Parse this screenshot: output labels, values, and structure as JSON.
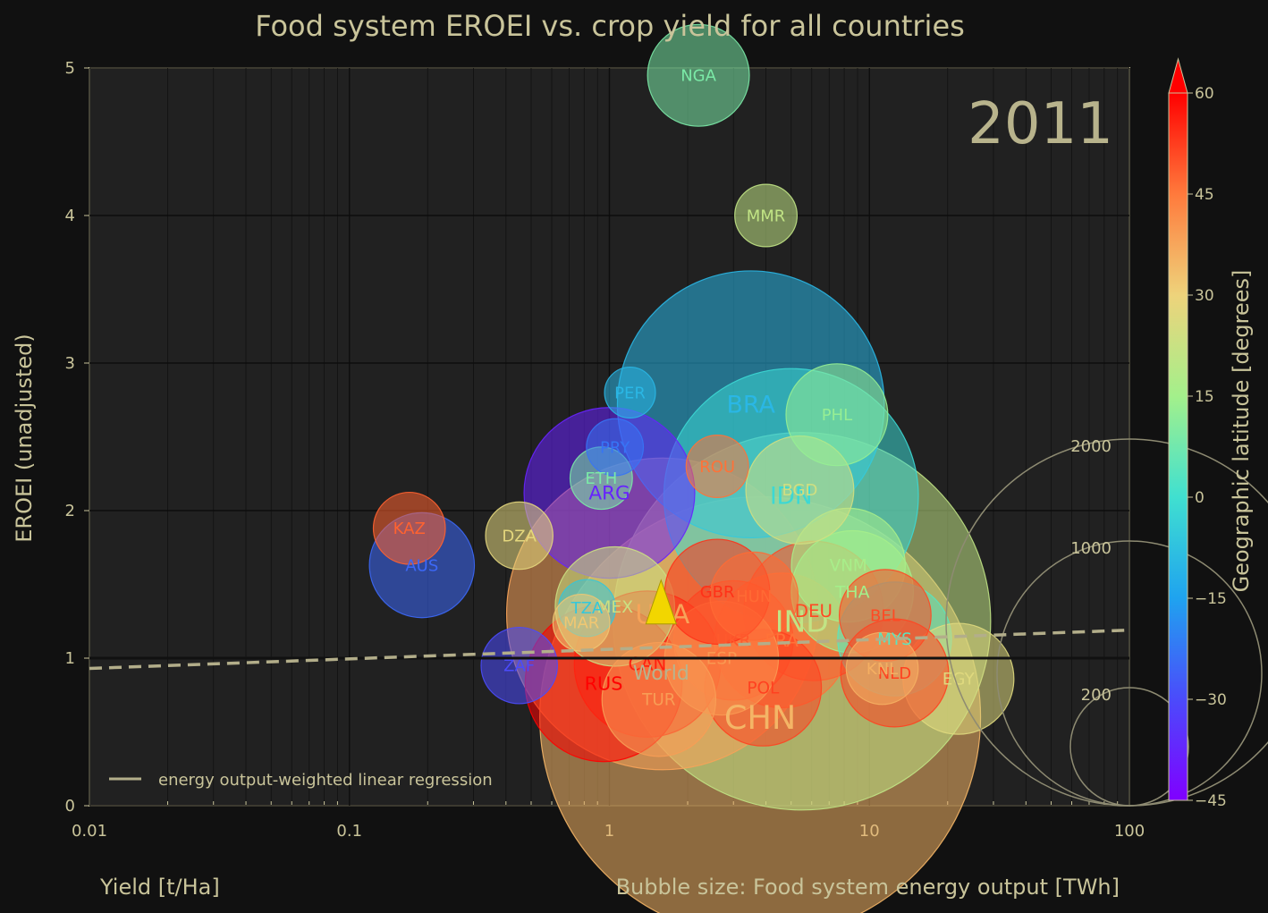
{
  "chart_data": {
    "type": "scatter",
    "title": "Food system EROEI vs. crop yield for all countries",
    "xlabel": "Yield [t/Ha]",
    "ylabel": "EROEI (unadjusted)",
    "size_label": "Bubble size: Food system energy output [TWh]",
    "colorbar_label": "Geographic latitude [degrees]",
    "year": "2011",
    "xscale": "log",
    "xlim": [
      0.01,
      100
    ],
    "ylim": [
      0,
      5
    ],
    "x_ticks": [
      "0.01",
      "0.1",
      "1",
      "10",
      "100"
    ],
    "y_ticks": [
      "0",
      "1",
      "2",
      "3",
      "4",
      "5"
    ],
    "colorbar_ticks": [
      "-45",
      "-30",
      "-15",
      "0",
      "15",
      "30",
      "45",
      "60"
    ],
    "colorbar_range": [
      -45,
      60
    ],
    "size_legend": [
      "2000",
      "1000",
      "200"
    ],
    "grid": true,
    "regression": {
      "label": "energy output-weighted linear regression",
      "x": [
        0.01,
        100
      ],
      "y": [
        0.93,
        1.19
      ]
    },
    "reference_line_y": 1,
    "world_point": {
      "name": "World",
      "x": 1.58,
      "y": 1.45,
      "lat": 25
    },
    "points": [
      {
        "name": "CHN",
        "x": 3.8,
        "y": 0.6,
        "size": 3000,
        "lat": 35
      },
      {
        "name": "IND",
        "x": 5.5,
        "y": 1.25,
        "size": 2200,
        "lat": 21
      },
      {
        "name": "USA",
        "x": 1.6,
        "y": 1.3,
        "size": 1500,
        "lat": 38
      },
      {
        "name": "BRA",
        "x": 3.5,
        "y": 2.72,
        "size": 1100,
        "lat": -10
      },
      {
        "name": "IDN",
        "x": 5.0,
        "y": 2.1,
        "size": 1000,
        "lat": -2
      },
      {
        "name": "ARG",
        "x": 1.0,
        "y": 2.12,
        "size": 450,
        "lat": -38
      },
      {
        "name": "RUS",
        "x": 0.95,
        "y": 0.83,
        "size": 380,
        "lat": 60
      },
      {
        "name": "CAN",
        "x": 1.4,
        "y": 0.96,
        "size": 330,
        "lat": 56
      },
      {
        "name": "FRA",
        "x": 4.6,
        "y": 1.12,
        "size": 280,
        "lat": 46
      },
      {
        "name": "DEU",
        "x": 6.1,
        "y": 1.32,
        "size": 300,
        "lat": 51
      },
      {
        "name": "THA",
        "x": 8.6,
        "y": 1.45,
        "size": 230,
        "lat": 15
      },
      {
        "name": "VNM",
        "x": 8.3,
        "y": 1.63,
        "size": 200,
        "lat": 16
      },
      {
        "name": "MYS",
        "x": 12.5,
        "y": 1.13,
        "size": 200,
        "lat": 4
      },
      {
        "name": "NLD",
        "x": 12.5,
        "y": 0.9,
        "size": 180,
        "lat": 52
      },
      {
        "name": "BEL",
        "x": 11.5,
        "y": 1.29,
        "size": 130,
        "lat": 51
      },
      {
        "name": "KNL",
        "x": 11.2,
        "y": 0.93,
        "size": 80,
        "lat": 36
      },
      {
        "name": "EGY",
        "x": 22.0,
        "y": 0.86,
        "size": 190,
        "lat": 27
      },
      {
        "name": "BGD",
        "x": 5.4,
        "y": 2.14,
        "size": 180,
        "lat": 24
      },
      {
        "name": "PHL",
        "x": 7.5,
        "y": 2.65,
        "size": 160,
        "lat": 13
      },
      {
        "name": "MMR",
        "x": 4.0,
        "y": 4.0,
        "size": 60,
        "lat": 21
      },
      {
        "name": "NGA",
        "x": 2.2,
        "y": 4.95,
        "size": 160,
        "lat": 9
      },
      {
        "name": "GBR",
        "x": 2.6,
        "y": 1.45,
        "size": 170,
        "lat": 54
      },
      {
        "name": "UKR",
        "x": 3.0,
        "y": 1.12,
        "size": 220,
        "lat": 49
      },
      {
        "name": "HUN",
        "x": 3.6,
        "y": 1.42,
        "size": 120,
        "lat": 47
      },
      {
        "name": "ESP",
        "x": 2.7,
        "y": 1.0,
        "size": 200,
        "lat": 40
      },
      {
        "name": "POL",
        "x": 3.9,
        "y": 0.8,
        "size": 210,
        "lat": 52
      },
      {
        "name": "ROU",
        "x": 2.6,
        "y": 2.3,
        "size": 60,
        "lat": 46
      },
      {
        "name": "AUS",
        "x": 0.19,
        "y": 1.63,
        "size": 170,
        "lat": -25
      },
      {
        "name": "KAZ",
        "x": 0.17,
        "y": 1.88,
        "size": 80,
        "lat": 48
      },
      {
        "name": "DZA",
        "x": 0.45,
        "y": 1.83,
        "size": 70,
        "lat": 28
      },
      {
        "name": "ETH",
        "x": 0.93,
        "y": 2.22,
        "size": 60,
        "lat": 9
      },
      {
        "name": "PRY",
        "x": 1.05,
        "y": 2.43,
        "size": 50,
        "lat": -23
      },
      {
        "name": "PER",
        "x": 1.2,
        "y": 2.8,
        "size": 40,
        "lat": -10
      },
      {
        "name": "ZAF",
        "x": 0.45,
        "y": 0.95,
        "size": 90,
        "lat": -30
      },
      {
        "name": "MEX",
        "x": 1.05,
        "y": 1.35,
        "size": 220,
        "lat": 23
      },
      {
        "name": "TZA",
        "x": 0.82,
        "y": 1.34,
        "size": 50,
        "lat": -6
      },
      {
        "name": "MAR",
        "x": 0.78,
        "y": 1.24,
        "size": 50,
        "lat": 32
      },
      {
        "name": "TUR",
        "x": 1.55,
        "y": 0.72,
        "size": 200,
        "lat": 39
      }
    ]
  }
}
